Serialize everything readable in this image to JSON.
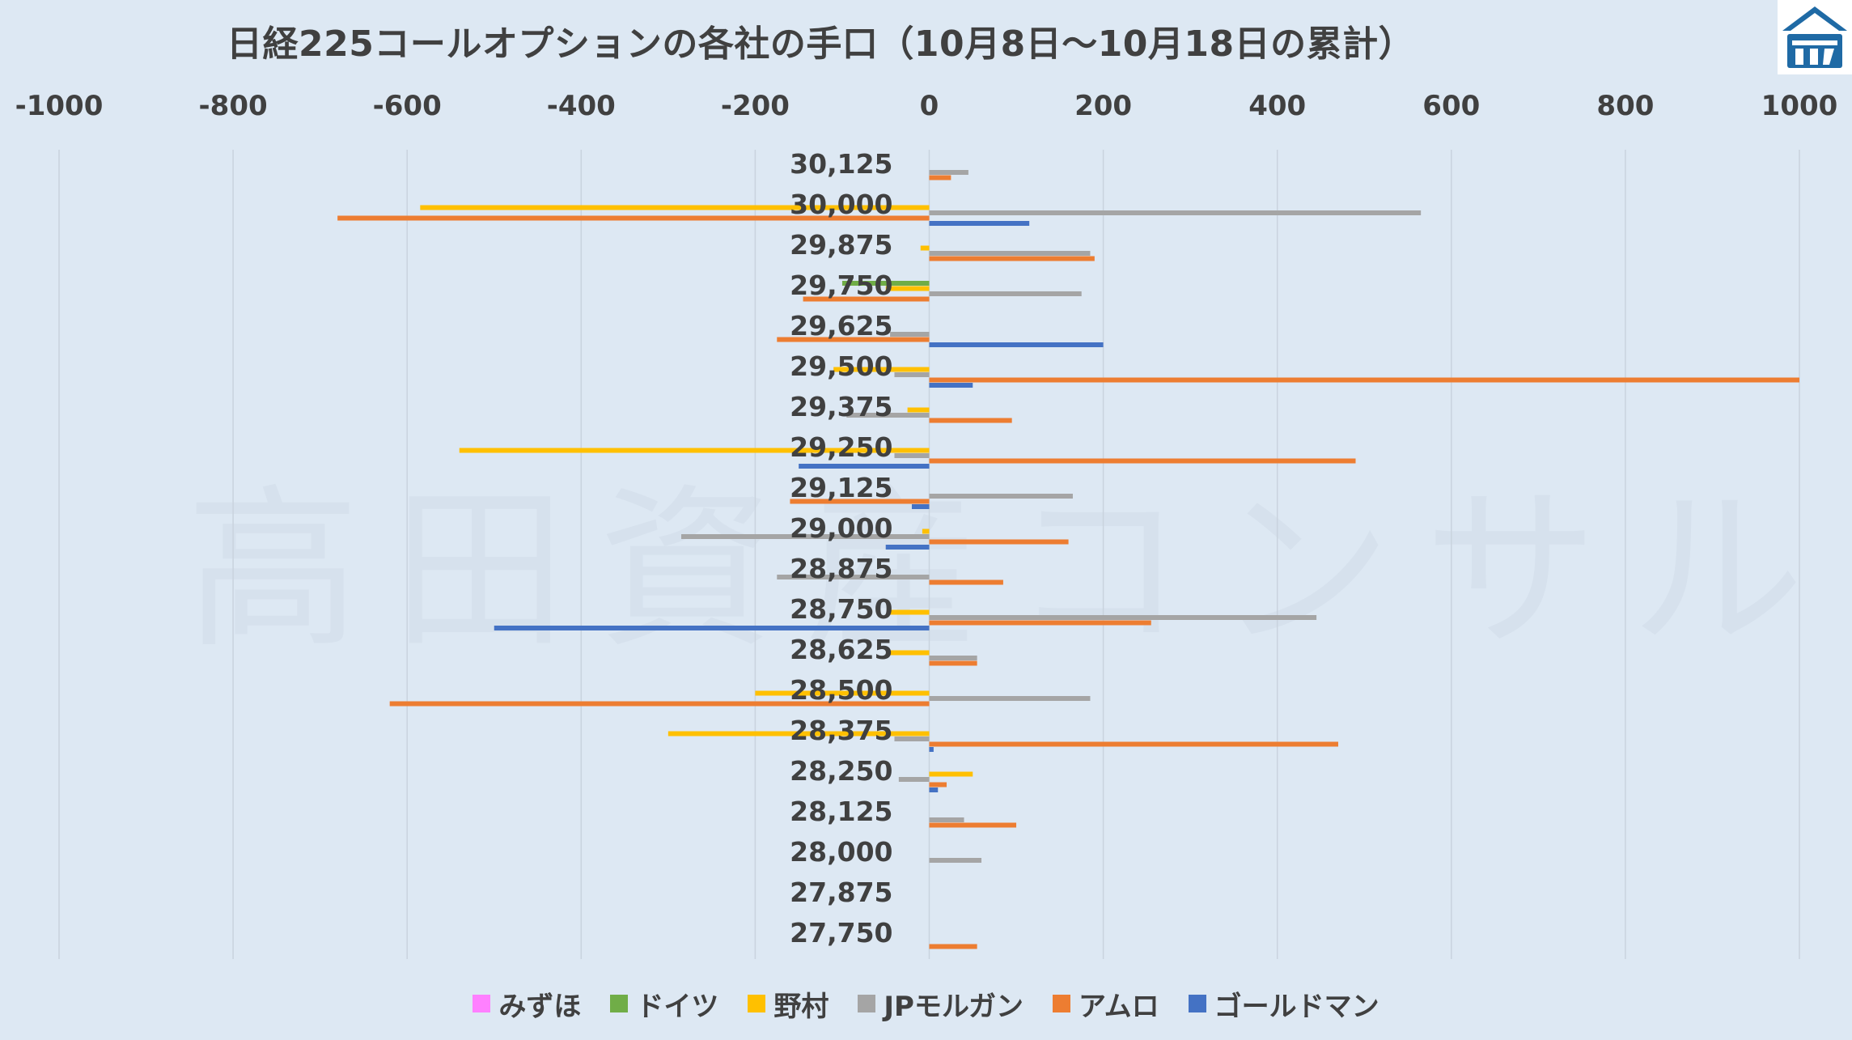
{
  "chart_data": {
    "type": "bar",
    "orientation": "horizontal",
    "title": "日経225コールオプションの各社の手口（10月8日〜10月18日の累計）",
    "watermark": "高田資産コンサル",
    "xlim": [
      -1000,
      1000
    ],
    "x_ticks": [
      "-1000",
      "-800",
      "-600",
      "-400",
      "-200",
      "0",
      "200",
      "400",
      "600",
      "800",
      "1000"
    ],
    "grid": true,
    "legend_position": "bottom",
    "categories": [
      "30,125",
      "30,000",
      "29,875",
      "29,750",
      "29,625",
      "29,500",
      "29,375",
      "29,250",
      "29,125",
      "29,000",
      "28,875",
      "28,750",
      "28,625",
      "28,500",
      "28,375",
      "28,250",
      "28,125",
      "28,000",
      "27,875",
      "27,750"
    ],
    "series": [
      {
        "name": "みずほ",
        "color": "#ff80ff",
        "values": [
          0,
          0,
          0,
          0,
          0,
          0,
          0,
          0,
          0,
          0,
          0,
          0,
          0,
          0,
          0,
          0,
          0,
          0,
          0,
          0
        ]
      },
      {
        "name": "ドイツ",
        "color": "#70ad47",
        "values": [
          0,
          0,
          0,
          -100,
          0,
          0,
          0,
          0,
          0,
          0,
          0,
          0,
          0,
          0,
          0,
          0,
          0,
          0,
          0,
          0
        ]
      },
      {
        "name": "野村",
        "color": "#ffc000",
        "values": [
          0,
          -585,
          -10,
          -50,
          0,
          -110,
          -25,
          -540,
          0,
          -8,
          0,
          -45,
          -45,
          -200,
          -300,
          50,
          0,
          0,
          0,
          0
        ]
      },
      {
        "name": "JPモルガン",
        "color": "#a5a5a5",
        "values": [
          45,
          565,
          185,
          175,
          -45,
          -40,
          -95,
          -40,
          165,
          -285,
          -175,
          445,
          55,
          185,
          -40,
          -35,
          40,
          60,
          0,
          0
        ]
      },
      {
        "name": "アムロ",
        "color": "#ed7d31",
        "values": [
          25,
          -680,
          190,
          -145,
          -175,
          1000,
          95,
          490,
          -160,
          160,
          85,
          255,
          55,
          -620,
          470,
          20,
          100,
          0,
          0,
          55
        ]
      },
      {
        "name": "ゴールドマン",
        "color": "#4472c4",
        "values": [
          0,
          115,
          0,
          0,
          200,
          50,
          0,
          -150,
          -20,
          -50,
          0,
          -500,
          0,
          0,
          5,
          10,
          0,
          0,
          0,
          0
        ]
      }
    ]
  }
}
